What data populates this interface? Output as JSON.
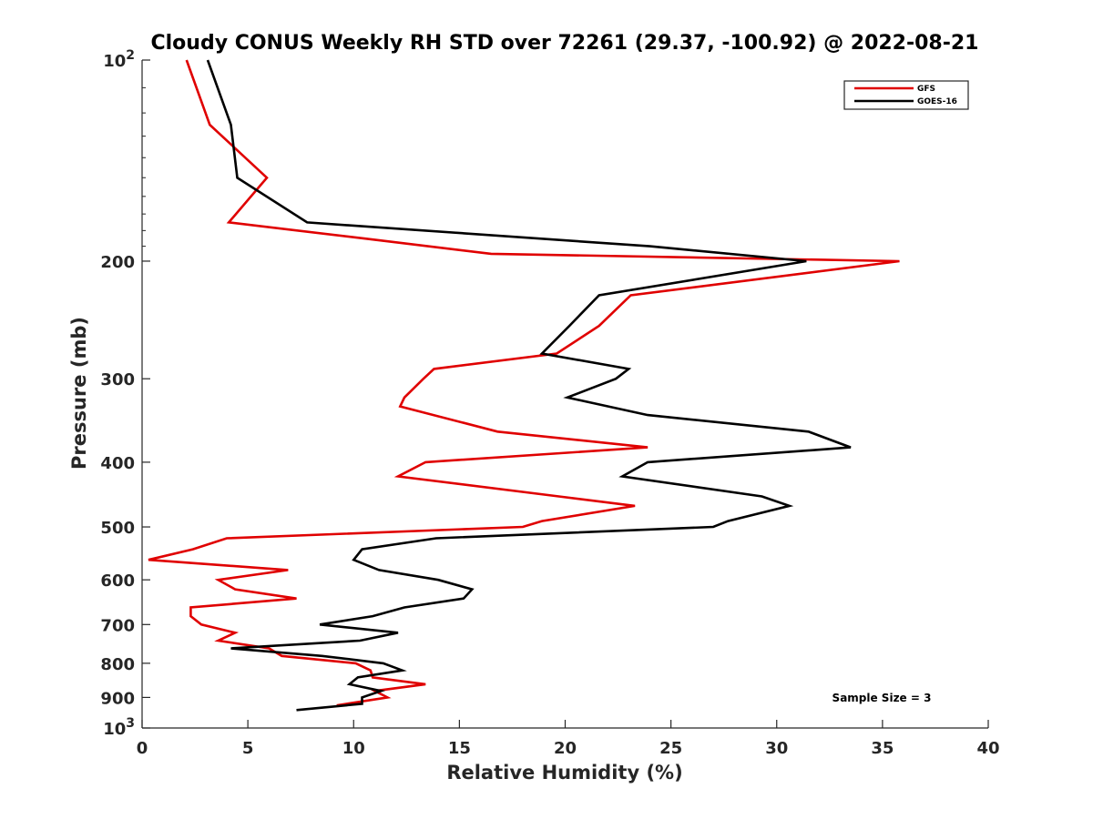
{
  "chart_data": {
    "type": "line",
    "title": "Cloudy CONUS Weekly RH STD over 72261 (29.37, -100.92) @ 2022-08-21",
    "xlabel": "Relative Humidity (%)",
    "ylabel": "Pressure (mb)",
    "xlim": [
      0,
      40
    ],
    "ylim": [
      100,
      1000
    ],
    "y_scale": "log",
    "y_reversed": true,
    "x_ticks": [
      "0",
      "5",
      "10",
      "15",
      "20",
      "25",
      "30",
      "35",
      "40"
    ],
    "y_ticks": [
      {
        "value": 100,
        "base": "10",
        "exp": "2"
      },
      {
        "value": 200,
        "label": "200"
      },
      {
        "value": 300,
        "label": "300"
      },
      {
        "value": 400,
        "label": "400"
      },
      {
        "value": 500,
        "label": "500"
      },
      {
        "value": 600,
        "label": "600"
      },
      {
        "value": 700,
        "label": "700"
      },
      {
        "value": 800,
        "label": "800"
      },
      {
        "value": 900,
        "label": "900"
      },
      {
        "value": 1000,
        "base": "10",
        "exp": "3"
      }
    ],
    "grid": false,
    "legend_position": "top-right",
    "series": [
      {
        "name": "GFS",
        "color": "#e00000",
        "points": [
          [
            2.1,
            100
          ],
          [
            3.2,
            125
          ],
          [
            5.9,
            150
          ],
          [
            4.1,
            175
          ],
          [
            10.5,
            185
          ],
          [
            16.5,
            195
          ],
          [
            35.8,
            200
          ],
          [
            23.1,
            225
          ],
          [
            21.6,
            250
          ],
          [
            19.6,
            275
          ],
          [
            13.8,
            290
          ],
          [
            13.3,
            300
          ],
          [
            12.4,
            320
          ],
          [
            12.2,
            330
          ],
          [
            16.8,
            360
          ],
          [
            23.9,
            380
          ],
          [
            13.4,
            400
          ],
          [
            12.1,
            420
          ],
          [
            19.7,
            450
          ],
          [
            23.3,
            465
          ],
          [
            18.9,
            490
          ],
          [
            18.0,
            500
          ],
          [
            4.0,
            520
          ],
          [
            2.4,
            540
          ],
          [
            0.3,
            560
          ],
          [
            6.9,
            580
          ],
          [
            3.6,
            600
          ],
          [
            4.4,
            620
          ],
          [
            7.3,
            640
          ],
          [
            2.3,
            660
          ],
          [
            2.3,
            680
          ],
          [
            2.8,
            700
          ],
          [
            4.4,
            720
          ],
          [
            3.6,
            740
          ],
          [
            6.0,
            760
          ],
          [
            6.6,
            780
          ],
          [
            10.1,
            800
          ],
          [
            10.8,
            820
          ],
          [
            10.9,
            840
          ],
          [
            13.4,
            860
          ],
          [
            11.0,
            880
          ],
          [
            11.6,
            900
          ],
          [
            9.2,
            925
          ]
        ]
      },
      {
        "name": "GOES-16",
        "color": "#000000",
        "points": [
          [
            3.1,
            100
          ],
          [
            4.2,
            125
          ],
          [
            4.5,
            150
          ],
          [
            7.8,
            175
          ],
          [
            24.0,
            190
          ],
          [
            31.4,
            200
          ],
          [
            21.6,
            225
          ],
          [
            20.2,
            250
          ],
          [
            18.9,
            275
          ],
          [
            23.0,
            290
          ],
          [
            22.4,
            300
          ],
          [
            20.1,
            320
          ],
          [
            23.9,
            340
          ],
          [
            31.5,
            360
          ],
          [
            33.5,
            380
          ],
          [
            23.9,
            400
          ],
          [
            22.7,
            420
          ],
          [
            29.3,
            450
          ],
          [
            30.6,
            465
          ],
          [
            27.7,
            490
          ],
          [
            27.0,
            500
          ],
          [
            13.9,
            520
          ],
          [
            10.4,
            540
          ],
          [
            10.0,
            560
          ],
          [
            11.2,
            580
          ],
          [
            14.0,
            600
          ],
          [
            15.6,
            620
          ],
          [
            15.2,
            640
          ],
          [
            12.4,
            660
          ],
          [
            10.9,
            680
          ],
          [
            8.4,
            700
          ],
          [
            12.1,
            720
          ],
          [
            10.3,
            740
          ],
          [
            4.2,
            760
          ],
          [
            8.5,
            780
          ],
          [
            11.4,
            800
          ],
          [
            12.3,
            820
          ],
          [
            10.2,
            840
          ],
          [
            9.8,
            860
          ],
          [
            11.3,
            880
          ],
          [
            10.4,
            900
          ],
          [
            10.4,
            920
          ],
          [
            7.3,
            940
          ]
        ]
      }
    ],
    "annotations": [
      "Sample Size = 3"
    ]
  }
}
